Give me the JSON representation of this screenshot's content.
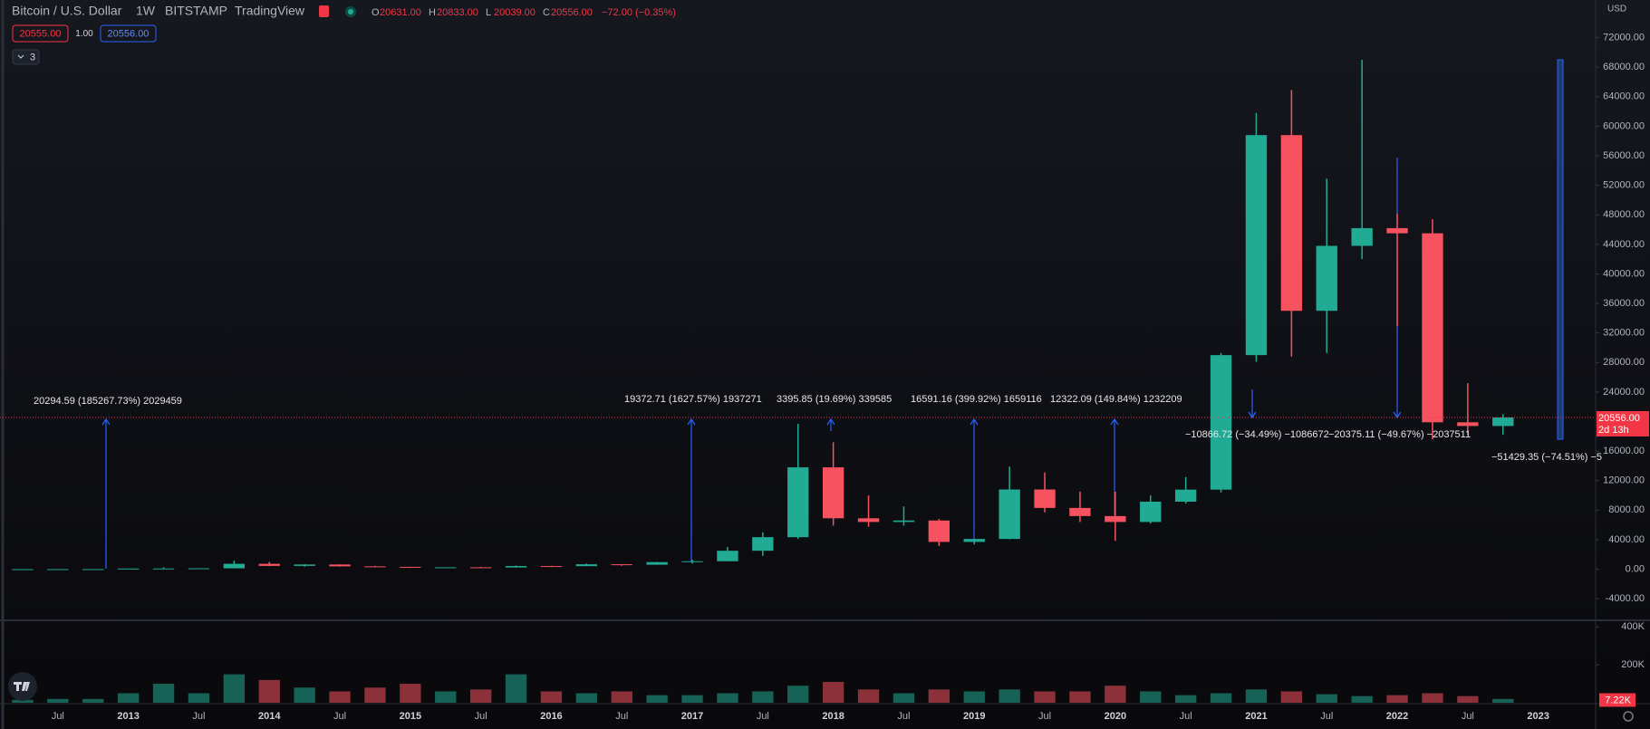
{
  "header": {
    "symbol": "Bitcoin / U.S. Dollar",
    "interval": "1W",
    "exchange": "BITSTAMP",
    "source": "TradingView",
    "ohlc": [
      {
        "key": "O",
        "value": "20631.00"
      },
      {
        "key": "H",
        "value": "20833.00"
      },
      {
        "key": "L",
        "value": "20039.00"
      },
      {
        "key": "C",
        "value": "20556.00"
      }
    ],
    "change": "−72.00 (−0.35%)",
    "sell": "20555.00",
    "spread": "1.00",
    "buy": "20556.00",
    "indicators": "3",
    "currency": "USD"
  },
  "chart_data": [
    {
      "type": "candlestick",
      "up_color": "#22ab94",
      "down_color": "#f7525f",
      "grid": false,
      "categories": [
        null,
        "Jul",
        null,
        "2013",
        null,
        "Jul",
        null,
        "2014",
        null,
        "Jul",
        null,
        "2015",
        null,
        "Jul",
        null,
        "2016",
        null,
        "Jul",
        null,
        "2017",
        null,
        "Jul",
        null,
        "2018",
        null,
        "Jul",
        null,
        "2019",
        null,
        "Jul",
        null,
        "2020",
        null,
        "Jul",
        null,
        "2021",
        null,
        "Jul",
        null,
        "2022",
        null,
        "Jul",
        null,
        "2023"
      ],
      "open": [
        5,
        7,
        12,
        13,
        93,
        97,
        125,
        732,
        450,
        640,
        390,
        320,
        245,
        263,
        237,
        430,
        415,
        670,
        610,
        965,
        1080,
        2500,
        4340,
        13800,
        6900,
        6400,
        6600,
        3700,
        4100,
        10800,
        8300,
        7200,
        6400,
        9150,
        10780,
        29000,
        58800,
        35000,
        43800,
        46200,
        45500,
        19900,
        19400,
        null
      ],
      "high": [
        7,
        13,
        13,
        95,
        260,
        140,
        1163,
        1000,
        680,
        650,
        460,
        320,
        265,
        315,
        500,
        460,
        780,
        680,
        980,
        1300,
        3000,
        5000,
        19700,
        17200,
        9990,
        8500,
        6800,
        4100,
        13900,
        13100,
        10500,
        10500,
        10000,
        12480,
        29300,
        61800,
        64900,
        52900,
        69000,
        48200,
        47400,
        25200,
        21000,
        null
      ],
      "low": [
        5,
        7,
        10,
        13,
        50,
        65,
        110,
        420,
        340,
        350,
        300,
        170,
        215,
        200,
        230,
        350,
        415,
        470,
        600,
        750,
        1080,
        1800,
        4100,
        5900,
        5750,
        5900,
        3150,
        3350,
        4050,
        7700,
        6400,
        3850,
        6200,
        8900,
        10400,
        28100,
        28800,
        29300,
        42000,
        32900,
        17600,
        18200,
        18200,
        null
      ],
      "close": [
        7,
        12,
        13,
        93,
        97,
        125,
        732,
        450,
        640,
        390,
        320,
        245,
        263,
        237,
        430,
        415,
        670,
        610,
        965,
        1080,
        2500,
        4340,
        13800,
        6900,
        6400,
        6600,
        3700,
        4100,
        10800,
        8300,
        7200,
        6400,
        9150,
        10780,
        29000,
        58800,
        35000,
        43800,
        46200,
        45500,
        19900,
        19400,
        20556,
        null
      ],
      "ylim": [
        -6800,
        77100
      ],
      "yticks": [
        {
          "value": 72000,
          "label": "72000.00"
        },
        {
          "value": 68000,
          "label": "68000.00"
        },
        {
          "value": 64000,
          "label": "64000.00"
        },
        {
          "value": 60000,
          "label": "60000.00"
        },
        {
          "value": 56000,
          "label": "56000.00"
        },
        {
          "value": 52000,
          "label": "52000.00"
        },
        {
          "value": 48000,
          "label": "48000.00"
        },
        {
          "value": 44000,
          "label": "44000.00"
        },
        {
          "value": 40000,
          "label": "40000.00"
        },
        {
          "value": 36000,
          "label": "36000.00"
        },
        {
          "value": 32000,
          "label": "32000.00"
        },
        {
          "value": 28000,
          "label": "28000.00"
        },
        {
          "value": 24000,
          "label": "24000.00"
        },
        {
          "value": 16000,
          "label": "16000.00"
        },
        {
          "value": 12000,
          "label": "12000.00"
        },
        {
          "value": 8000,
          "label": "8000.00"
        },
        {
          "value": 4000,
          "label": "4000.00"
        },
        {
          "value": 0,
          "label": "0.00"
        },
        {
          "value": -4000,
          "label": "-4000.00"
        }
      ],
      "price_line": {
        "value": 20556,
        "label": "20556.00",
        "countdown": "2d 13h",
        "color": "#f23645"
      },
      "annotations": [
        "20294.59 (185267.73%) 2029459",
        "19372.71 (1627.57%) 1937271",
        "3395.85 (19.69%) 339585",
        "16591.16 (399.92%) 1659116",
        "12322.09 (149.84%) 1232209",
        "−10866.72 (−34.49%) −1086672",
        "−20375.11 (−49.67%) −2037511",
        "−51429.35 (−74.51%) −5"
      ]
    },
    {
      "type": "volume",
      "values": [
        15000,
        20000,
        20000,
        50000,
        100000,
        50000,
        150000,
        120000,
        80000,
        60000,
        80000,
        100000,
        60000,
        70000,
        150000,
        60000,
        50000,
        60000,
        40000,
        40000,
        50000,
        60000,
        90000,
        110000,
        70000,
        50000,
        70000,
        60000,
        70000,
        60000,
        60000,
        90000,
        60000,
        40000,
        50000,
        70000,
        60000,
        45000,
        35000,
        40000,
        50000,
        35000,
        20000,
        null
      ],
      "ylim": [
        0,
        430000
      ],
      "yticks": [
        {
          "value": 400000,
          "label": "400K"
        },
        {
          "value": 200000,
          "label": "200K"
        }
      ],
      "last": {
        "value": 7220,
        "label": "7.22K"
      }
    }
  ]
}
